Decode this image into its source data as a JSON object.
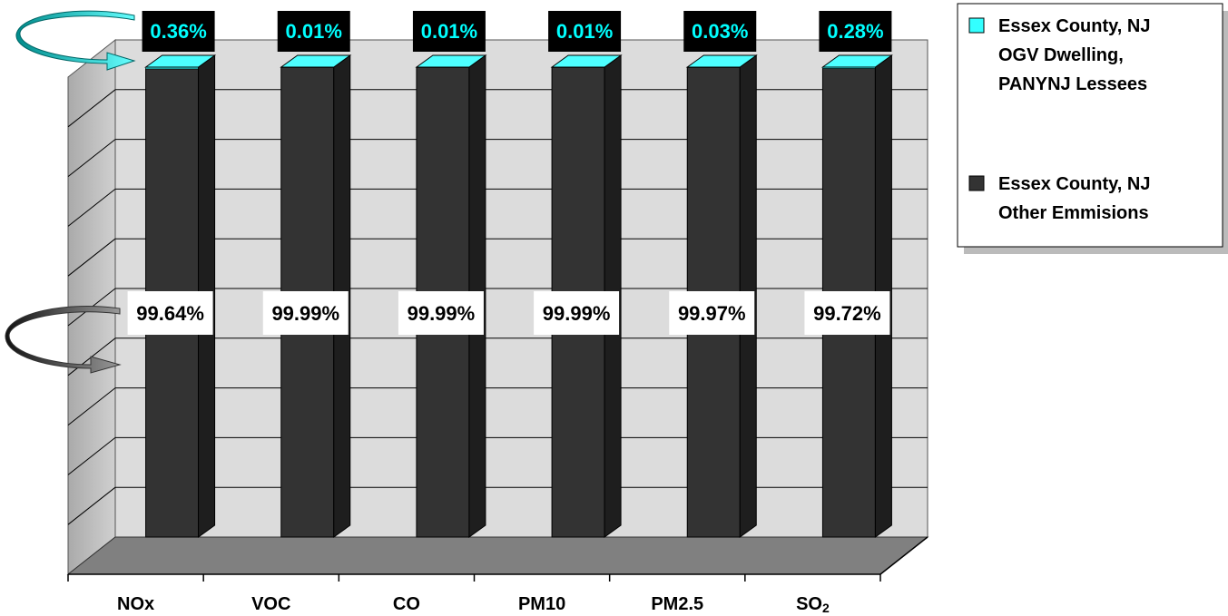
{
  "chart_data": {
    "type": "bar",
    "stacked": true,
    "percent_stacked": true,
    "three_d": true,
    "categories": [
      "NOx",
      "VOC",
      "CO",
      "PM10",
      "PM2.5",
      "SO2"
    ],
    "category_labels": [
      {
        "main": "NOx",
        "sub": ""
      },
      {
        "main": "VOC",
        "sub": ""
      },
      {
        "main": "CO",
        "sub": ""
      },
      {
        "main": "PM10",
        "sub": ""
      },
      {
        "main": "PM2.5",
        "sub": ""
      },
      {
        "main": "SO",
        "sub": "2"
      }
    ],
    "series": [
      {
        "name_lines": [
          "Essex County, NJ",
          "OGV Dwelling,",
          "PANYNJ Lessees"
        ],
        "values": [
          0.36,
          0.01,
          0.01,
          0.01,
          0.03,
          0.28
        ],
        "labels": [
          "0.36%",
          "0.01%",
          "0.01%",
          "0.01%",
          "0.03%",
          "0.28%"
        ],
        "color": "#33ffff"
      },
      {
        "name_lines": [
          "Essex County, NJ",
          "Other Emmisions"
        ],
        "values": [
          99.64,
          99.99,
          99.99,
          99.99,
          99.97,
          99.72
        ],
        "labels": [
          "99.64%",
          "99.99%",
          "99.99%",
          "99.99%",
          "99.97%",
          "99.72%"
        ],
        "color": "#333333"
      }
    ],
    "ylim": [
      0,
      100
    ],
    "grid": true,
    "legend": "right",
    "title": "",
    "xlabel": "",
    "ylabel": ""
  },
  "colors": {
    "back_wall": "#dcdcdc",
    "side_wall": "#c0c0c0",
    "floor": "#808080",
    "bar_front": "#333333",
    "bar_side": "#1e1e1e",
    "bar_top": "#4dffff",
    "top_label_bg": "#000000",
    "bottom_label_bg": "#ffffff"
  }
}
